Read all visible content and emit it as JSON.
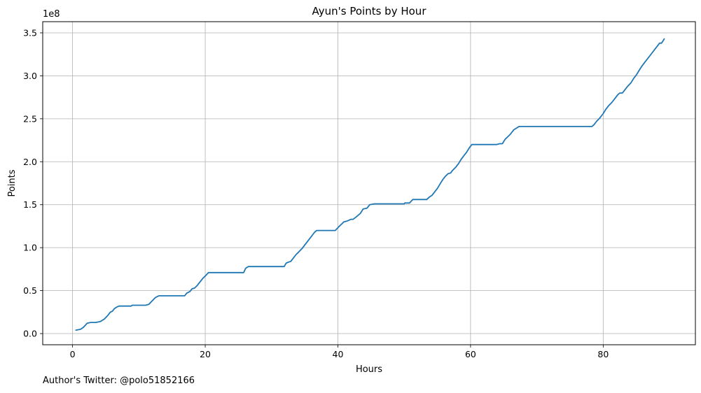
{
  "chart_data": {
    "type": "line",
    "title": "Ayun's Points by Hour",
    "xlabel": "Hours",
    "ylabel": "Points",
    "y_scale_label": "1e8",
    "xlim": [
      -4.5,
      93.9
    ],
    "ylim": [
      -0.13,
      3.63
    ],
    "x_ticks": [
      0,
      20,
      40,
      60,
      80
    ],
    "x_tick_labels": [
      "0",
      "20",
      "40",
      "60",
      "80"
    ],
    "y_ticks": [
      0.0,
      0.5,
      1.0,
      1.5,
      2.0,
      2.5,
      3.0,
      3.5
    ],
    "y_tick_labels": [
      "0.0",
      "0.5",
      "1.0",
      "1.5",
      "2.0",
      "2.5",
      "3.0",
      "3.5"
    ],
    "grid": true,
    "line_color": "#1f77b4",
    "series": [
      {
        "x": [
          0.5,
          1.2,
          1.6,
          2.2,
          2.7,
          3.5,
          4.2,
          4.8,
          5.3,
          5.7,
          6.0,
          6.3,
          6.7,
          7.0,
          7.5,
          8.0,
          8.8,
          9.0,
          9.5,
          10.0,
          11.0,
          11.5,
          12.0,
          12.5,
          13.0,
          14.0,
          15.0,
          16.0,
          16.9,
          17.2,
          17.7,
          18.0,
          18.4,
          18.8,
          19.2,
          19.6,
          20.0,
          20.5,
          21.0,
          22.0,
          23.0,
          24.0,
          25.0,
          25.8,
          26.1,
          26.5,
          27.0,
          28.0,
          30.0,
          31.9,
          32.2,
          32.5,
          32.9,
          33.3,
          33.7,
          34.1,
          34.6,
          35.1,
          35.6,
          36.1,
          36.5,
          36.8,
          37.3,
          38.0,
          39.0,
          39.6,
          40.1,
          40.5,
          40.9,
          41.4,
          42.0,
          42.3,
          42.8,
          43.4,
          43.8,
          44.4,
          44.8,
          45.5,
          46.0,
          48.0,
          50.0,
          50.1,
          50.8,
          51.3,
          52.0,
          53.0,
          53.4,
          53.8,
          54.2,
          54.6,
          55.0,
          55.4,
          55.8,
          56.2,
          56.6,
          57.0,
          57.3,
          57.8,
          58.2,
          58.6,
          59.0,
          59.4,
          59.8,
          60.2,
          61.0,
          62.0,
          63.0,
          63.9,
          64.4,
          64.8,
          65.2,
          65.6,
          66.0,
          66.5,
          67.1,
          67.3,
          68.0,
          70.0,
          75.0,
          77.9,
          78.3,
          78.6,
          79.0,
          79.5,
          80.0,
          80.4,
          80.8,
          81.3,
          81.8,
          82.2,
          82.5,
          82.9,
          83.3,
          83.7,
          84.2,
          84.6,
          85.0,
          85.4,
          85.8,
          86.3,
          86.8,
          87.3,
          87.8,
          88.2,
          88.5,
          88.8,
          89.2
        ],
        "y": [
          0.04,
          0.05,
          0.07,
          0.12,
          0.13,
          0.13,
          0.14,
          0.17,
          0.21,
          0.25,
          0.26,
          0.29,
          0.31,
          0.32,
          0.32,
          0.32,
          0.32,
          0.33,
          0.33,
          0.33,
          0.33,
          0.34,
          0.38,
          0.42,
          0.44,
          0.44,
          0.44,
          0.44,
          0.44,
          0.47,
          0.49,
          0.52,
          0.53,
          0.56,
          0.6,
          0.64,
          0.67,
          0.71,
          0.71,
          0.71,
          0.71,
          0.71,
          0.71,
          0.71,
          0.76,
          0.78,
          0.78,
          0.78,
          0.78,
          0.78,
          0.82,
          0.83,
          0.84,
          0.88,
          0.92,
          0.95,
          0.99,
          1.04,
          1.09,
          1.14,
          1.18,
          1.2,
          1.2,
          1.2,
          1.2,
          1.2,
          1.24,
          1.27,
          1.3,
          1.31,
          1.33,
          1.33,
          1.36,
          1.4,
          1.45,
          1.46,
          1.5,
          1.51,
          1.51,
          1.51,
          1.51,
          1.52,
          1.52,
          1.56,
          1.56,
          1.56,
          1.56,
          1.59,
          1.61,
          1.65,
          1.69,
          1.74,
          1.79,
          1.83,
          1.86,
          1.87,
          1.9,
          1.94,
          1.98,
          2.03,
          2.07,
          2.11,
          2.16,
          2.2,
          2.2,
          2.2,
          2.2,
          2.2,
          2.21,
          2.21,
          2.26,
          2.29,
          2.32,
          2.37,
          2.4,
          2.41,
          2.41,
          2.41,
          2.41,
          2.41,
          2.41,
          2.43,
          2.47,
          2.51,
          2.56,
          2.61,
          2.65,
          2.69,
          2.74,
          2.78,
          2.8,
          2.8,
          2.84,
          2.88,
          2.92,
          2.97,
          3.01,
          3.06,
          3.11,
          3.16,
          3.21,
          3.26,
          3.31,
          3.35,
          3.38,
          3.38,
          3.43
        ]
      }
    ]
  },
  "footer": {
    "author_text": "Author's Twitter: @polo51852166"
  }
}
